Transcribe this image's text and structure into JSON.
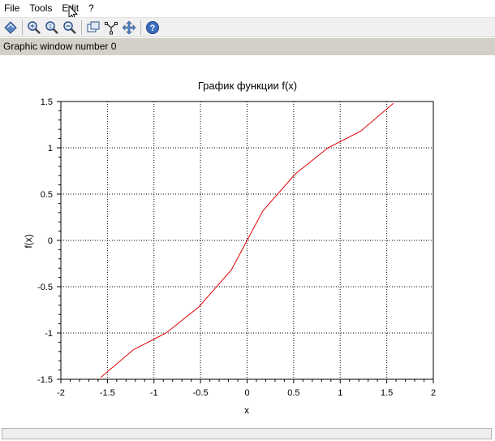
{
  "menu": {
    "items": [
      "File",
      "Tools",
      "Edit",
      "?"
    ]
  },
  "toolbar": {
    "icons": [
      "rotate-icon",
      "zoom-in-icon",
      "zoom-original-icon",
      "zoom-out-icon",
      "datatip-icon",
      "curve-edit-icon",
      "pan-icon",
      "help-icon"
    ]
  },
  "status": {
    "text": "Graphic window number 0"
  },
  "colors": {
    "curve": "#e00000",
    "grid": "#000000",
    "statusbar": "#d4d0c8"
  },
  "chart_data": {
    "type": "line",
    "title": "График функции f(x)",
    "xlabel": "x",
    "ylabel": "f(x)",
    "xlim": [
      -2,
      2
    ],
    "ylim": [
      -1.5,
      1.5
    ],
    "grid": true,
    "grid_style": "dotted",
    "xticks": [
      "-2",
      "-1.5",
      "-1",
      "-0.5",
      "0",
      "0.5",
      "1",
      "1.5",
      "2"
    ],
    "yticks": [
      "1.5",
      "1",
      "0.5",
      "0",
      "-0.5",
      "-1",
      "-1.5"
    ],
    "series": [
      {
        "color": "#e00000",
        "x": [
          -1.57,
          -1.22,
          -0.87,
          -0.52,
          -0.17,
          0.0,
          0.17,
          0.52,
          0.87,
          1.22,
          1.57
        ],
        "y": [
          -1.48,
          -1.18,
          -1.0,
          -0.72,
          -0.32,
          0.0,
          0.32,
          0.72,
          1.0,
          1.18,
          1.48
        ]
      }
    ]
  }
}
